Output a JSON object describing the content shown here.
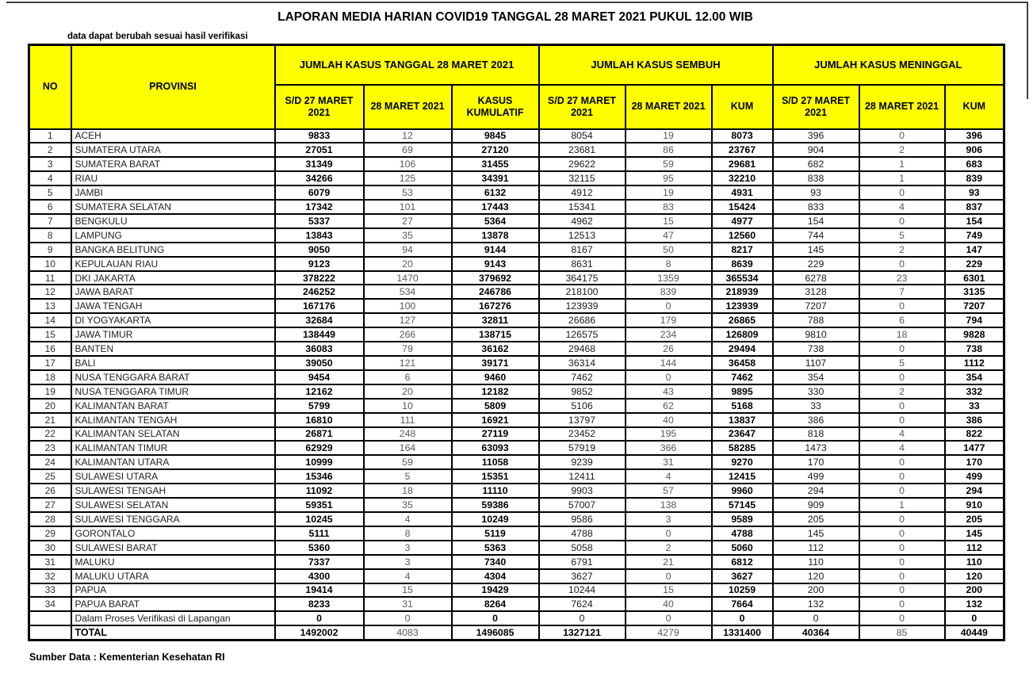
{
  "title": "LAPORAN MEDIA HARIAN COVID19 TANGGAL 28 MARET 2021 PUKUL 12.00 WIB",
  "note": "data dapat berubah sesuai hasil verifikasi",
  "source": "Sumber Data : Kementerian Kesehatan RI",
  "colors": {
    "header_bg": "#FFFF00",
    "border": "#000000",
    "muted_value": "#595959"
  },
  "table": {
    "corner_headers": {
      "no": "NO",
      "provinsi": "PROVINSI"
    },
    "groups": [
      {
        "label": "JUMLAH KASUS TANGGAL 28 MARET 2021",
        "sub": [
          "S/D 27 MARET 2021",
          "28 MARET 2021",
          "KASUS KUMULATIF"
        ]
      },
      {
        "label": "JUMLAH KASUS SEMBUH",
        "sub": [
          "S/D 27 MARET 2021",
          "28 MARET 2021",
          "KUM"
        ]
      },
      {
        "label": "JUMLAH KASUS MENINGGAL",
        "sub": [
          "S/D 27 MARET 2021",
          "28 MARET 2021",
          "KUM"
        ]
      }
    ],
    "rows": [
      {
        "no": "1",
        "provinsi": "ACEH",
        "values": [
          "9833",
          "12",
          "9845",
          "8054",
          "19",
          "8073",
          "396",
          "0",
          "396"
        ]
      },
      {
        "no": "2",
        "provinsi": "SUMATERA UTARA",
        "values": [
          "27051",
          "69",
          "27120",
          "23681",
          "86",
          "23767",
          "904",
          "2",
          "906"
        ]
      },
      {
        "no": "3",
        "provinsi": "SUMATERA BARAT",
        "values": [
          "31349",
          "106",
          "31455",
          "29622",
          "59",
          "29681",
          "682",
          "1",
          "683"
        ]
      },
      {
        "no": "4",
        "provinsi": "RIAU",
        "values": [
          "34266",
          "125",
          "34391",
          "32115",
          "95",
          "32210",
          "838",
          "1",
          "839"
        ]
      },
      {
        "no": "5",
        "provinsi": "JAMBI",
        "values": [
          "6079",
          "53",
          "6132",
          "4912",
          "19",
          "4931",
          "93",
          "0",
          "93"
        ]
      },
      {
        "no": "6",
        "provinsi": "SUMATERA SELATAN",
        "values": [
          "17342",
          "101",
          "17443",
          "15341",
          "83",
          "15424",
          "833",
          "4",
          "837"
        ]
      },
      {
        "no": "7",
        "provinsi": "BENGKULU",
        "values": [
          "5337",
          "27",
          "5364",
          "4962",
          "15",
          "4977",
          "154",
          "0",
          "154"
        ]
      },
      {
        "no": "8",
        "provinsi": "LAMPUNG",
        "values": [
          "13843",
          "35",
          "13878",
          "12513",
          "47",
          "12560",
          "744",
          "5",
          "749"
        ]
      },
      {
        "no": "9",
        "provinsi": "BANGKA BELITUNG",
        "values": [
          "9050",
          "94",
          "9144",
          "8167",
          "50",
          "8217",
          "145",
          "2",
          "147"
        ]
      },
      {
        "no": "10",
        "provinsi": "KEPULAUAN RIAU",
        "values": [
          "9123",
          "20",
          "9143",
          "8631",
          "8",
          "8639",
          "229",
          "0",
          "229"
        ]
      },
      {
        "no": "11",
        "provinsi": "DKI JAKARTA",
        "values": [
          "378222",
          "1470",
          "379692",
          "364175",
          "1359",
          "365534",
          "6278",
          "23",
          "6301"
        ]
      },
      {
        "no": "12",
        "provinsi": "JAWA BARAT",
        "values": [
          "246252",
          "534",
          "246786",
          "218100",
          "839",
          "218939",
          "3128",
          "7",
          "3135"
        ]
      },
      {
        "no": "13",
        "provinsi": "JAWA TENGAH",
        "values": [
          "167176",
          "100",
          "167276",
          "123939",
          "0",
          "123939",
          "7207",
          "0",
          "7207"
        ]
      },
      {
        "no": "14",
        "provinsi": "DI YOGYAKARTA",
        "values": [
          "32684",
          "127",
          "32811",
          "26686",
          "179",
          "26865",
          "788",
          "6",
          "794"
        ]
      },
      {
        "no": "15",
        "provinsi": "JAWA TIMUR",
        "values": [
          "138449",
          "266",
          "138715",
          "126575",
          "234",
          "126809",
          "9810",
          "18",
          "9828"
        ]
      },
      {
        "no": "16",
        "provinsi": "BANTEN",
        "values": [
          "36083",
          "79",
          "36162",
          "29468",
          "26",
          "29494",
          "738",
          "0",
          "738"
        ]
      },
      {
        "no": "17",
        "provinsi": "BALI",
        "values": [
          "39050",
          "121",
          "39171",
          "36314",
          "144",
          "36458",
          "1107",
          "5",
          "1112"
        ]
      },
      {
        "no": "18",
        "provinsi": "NUSA TENGGARA BARAT",
        "values": [
          "9454",
          "6",
          "9460",
          "7462",
          "0",
          "7462",
          "354",
          "0",
          "354"
        ]
      },
      {
        "no": "19",
        "provinsi": "NUSA TENGGARA TIMUR",
        "values": [
          "12162",
          "20",
          "12182",
          "9852",
          "43",
          "9895",
          "330",
          "2",
          "332"
        ]
      },
      {
        "no": "20",
        "provinsi": "KALIMANTAN BARAT",
        "values": [
          "5799",
          "10",
          "5809",
          "5106",
          "62",
          "5168",
          "33",
          "0",
          "33"
        ]
      },
      {
        "no": "21",
        "provinsi": "KALIMANTAN TENGAH",
        "values": [
          "16810",
          "111",
          "16921",
          "13797",
          "40",
          "13837",
          "386",
          "0",
          "386"
        ]
      },
      {
        "no": "22",
        "provinsi": "KALIMANTAN SELATAN",
        "values": [
          "26871",
          "248",
          "27119",
          "23452",
          "195",
          "23647",
          "818",
          "4",
          "822"
        ]
      },
      {
        "no": "23",
        "provinsi": "KALIMANTAN TIMUR",
        "values": [
          "62929",
          "164",
          "63093",
          "57919",
          "366",
          "58285",
          "1473",
          "4",
          "1477"
        ]
      },
      {
        "no": "24",
        "provinsi": "KALIMANTAN UTARA",
        "values": [
          "10999",
          "59",
          "11058",
          "9239",
          "31",
          "9270",
          "170",
          "0",
          "170"
        ]
      },
      {
        "no": "25",
        "provinsi": "SULAWESI UTARA",
        "values": [
          "15346",
          "5",
          "15351",
          "12411",
          "4",
          "12415",
          "499",
          "0",
          "499"
        ]
      },
      {
        "no": "26",
        "provinsi": "SULAWESI TENGAH",
        "values": [
          "11092",
          "18",
          "11110",
          "9903",
          "57",
          "9960",
          "294",
          "0",
          "294"
        ]
      },
      {
        "no": "27",
        "provinsi": "SULAWESI SELATAN",
        "values": [
          "59351",
          "35",
          "59386",
          "57007",
          "138",
          "57145",
          "909",
          "1",
          "910"
        ]
      },
      {
        "no": "28",
        "provinsi": "SULAWESI TENGGARA",
        "values": [
          "10245",
          "4",
          "10249",
          "9586",
          "3",
          "9589",
          "205",
          "0",
          "205"
        ]
      },
      {
        "no": "29",
        "provinsi": "GORONTALO",
        "values": [
          "5111",
          "8",
          "5119",
          "4788",
          "0",
          "4788",
          "145",
          "0",
          "145"
        ]
      },
      {
        "no": "30",
        "provinsi": "SULAWESI BARAT",
        "values": [
          "5360",
          "3",
          "5363",
          "5058",
          "2",
          "5060",
          "112",
          "0",
          "112"
        ]
      },
      {
        "no": "31",
        "provinsi": "MALUKU",
        "values": [
          "7337",
          "3",
          "7340",
          "6791",
          "21",
          "6812",
          "110",
          "0",
          "110"
        ]
      },
      {
        "no": "32",
        "provinsi": "MALUKU UTARA",
        "values": [
          "4300",
          "4",
          "4304",
          "3627",
          "0",
          "3627",
          "120",
          "0",
          "120"
        ]
      },
      {
        "no": "33",
        "provinsi": "PAPUA",
        "values": [
          "19414",
          "15",
          "19429",
          "10244",
          "15",
          "10259",
          "200",
          "0",
          "200"
        ]
      },
      {
        "no": "34",
        "provinsi": "PAPUA BARAT",
        "values": [
          "8233",
          "31",
          "8264",
          "7624",
          "40",
          "7664",
          "132",
          "0",
          "132"
        ]
      },
      {
        "no": "",
        "provinsi": "Dalam Proses Verifikasi di Lapangan",
        "values": [
          "0",
          "0",
          "0",
          "0",
          "0",
          "0",
          "0",
          "0",
          "0"
        ]
      },
      {
        "no": "",
        "provinsi": "TOTAL",
        "values": [
          "1492002",
          "4083",
          "1496085",
          "1327121",
          "4279",
          "1331400",
          "40364",
          "85",
          "40449"
        ],
        "is_total": true
      }
    ]
  }
}
